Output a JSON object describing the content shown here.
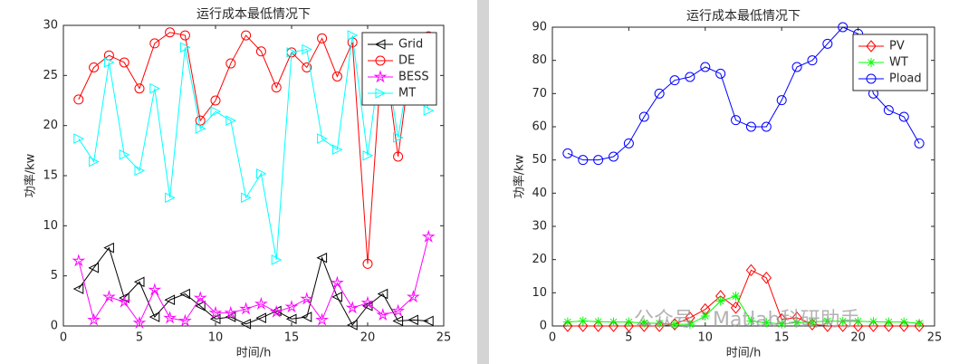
{
  "chart_data": [
    {
      "type": "line",
      "title": "运行成本最低情况下",
      "xlabel": "时间/h",
      "ylabel": "功率/kw",
      "x": [
        1,
        2,
        3,
        4,
        5,
        6,
        7,
        8,
        9,
        10,
        11,
        12,
        13,
        14,
        15,
        16,
        17,
        18,
        19,
        20,
        21,
        22,
        23,
        24
      ],
      "xlim": [
        0,
        25
      ],
      "xticks": [
        0,
        5,
        10,
        15,
        20,
        25
      ],
      "ylim": [
        0,
        30
      ],
      "yticks": [
        0,
        5,
        10,
        15,
        20,
        25,
        30
      ],
      "grid": false,
      "legend": "northeast",
      "series": [
        {
          "name": "Grid",
          "color": "#000000",
          "marker": "<",
          "values": [
            3.7,
            5.8,
            7.8,
            2.8,
            4.4,
            0.9,
            2.6,
            3.2,
            2.0,
            0.7,
            0.9,
            0.2,
            0.8,
            1.5,
            0.7,
            0.9,
            6.8,
            2.9,
            0.1,
            2.0,
            3.2,
            0.5,
            0.6,
            0.5
          ]
        },
        {
          "name": "DE",
          "color": "#ff0000",
          "marker": "o",
          "values": [
            22.6,
            25.8,
            27.0,
            26.3,
            23.7,
            28.2,
            29.3,
            29.0,
            20.5,
            22.5,
            26.2,
            29.0,
            27.4,
            23.8,
            27.3,
            25.8,
            28.7,
            24.9,
            28.3,
            6.2,
            28.5,
            16.9,
            28.5,
            28.9
          ]
        },
        {
          "name": "BESS",
          "color": "#ff00ff",
          "marker": "p",
          "values": [
            6.5,
            0.6,
            2.9,
            2.4,
            0.3,
            3.6,
            0.8,
            0.5,
            2.8,
            1.3,
            1.3,
            1.7,
            2.2,
            1.4,
            1.9,
            2.7,
            0.6,
            4.3,
            1.8,
            2.3,
            1.1,
            1.5,
            2.9,
            8.9
          ]
        },
        {
          "name": "MT",
          "color": "#00ffff",
          "marker": ">",
          "values": [
            18.7,
            16.4,
            26.3,
            17.1,
            15.5,
            23.7,
            12.8,
            27.8,
            19.7,
            21.4,
            20.5,
            12.8,
            15.2,
            6.6,
            27.3,
            27.6,
            18.7,
            17.6,
            29.0,
            17.0,
            28.5,
            18.8,
            28.0,
            21.5
          ]
        }
      ]
    },
    {
      "type": "line",
      "title": "运行成本最低情况下",
      "xlabel": "时间/h",
      "ylabel": "功率/kw",
      "x": [
        1,
        2,
        3,
        4,
        5,
        6,
        7,
        8,
        9,
        10,
        11,
        12,
        13,
        14,
        15,
        16,
        17,
        18,
        19,
        20,
        21,
        22,
        23,
        24
      ],
      "xlim": [
        0,
        25
      ],
      "xticks": [
        0,
        5,
        10,
        15,
        20,
        25
      ],
      "ylim": [
        0,
        90
      ],
      "yticks": [
        0,
        10,
        20,
        30,
        40,
        50,
        60,
        70,
        80,
        90
      ],
      "grid": false,
      "legend": "northeast",
      "series": [
        {
          "name": "PV",
          "color": "#ff0000",
          "marker": "d",
          "values": [
            0,
            0,
            0,
            0,
            0,
            0,
            0,
            0.5,
            2.5,
            5,
            9,
            5.5,
            16.8,
            14.5,
            2,
            2.5,
            0.5,
            0,
            0,
            0,
            0,
            0,
            0,
            0
          ]
        },
        {
          "name": "WT",
          "color": "#00ff00",
          "marker": "*",
          "values": [
            1.2,
            1.5,
            1.3,
            1.2,
            1.2,
            0.9,
            0.8,
            0.5,
            0.5,
            3,
            7.5,
            9,
            1.5,
            1.0,
            0.6,
            1.0,
            1.2,
            1.5,
            1.4,
            1.4,
            1.3,
            1.2,
            1.2,
            0.8
          ]
        },
        {
          "name": "Pload",
          "color": "#0000ff",
          "marker": "o",
          "values": [
            52,
            50,
            50,
            51,
            55,
            63,
            70,
            74,
            75,
            78,
            76,
            62,
            60,
            60,
            68,
            78,
            80,
            85,
            90,
            88,
            70,
            65,
            63,
            55
          ]
        }
      ]
    }
  ],
  "watermark": "公众号 · Matlab科研助手"
}
